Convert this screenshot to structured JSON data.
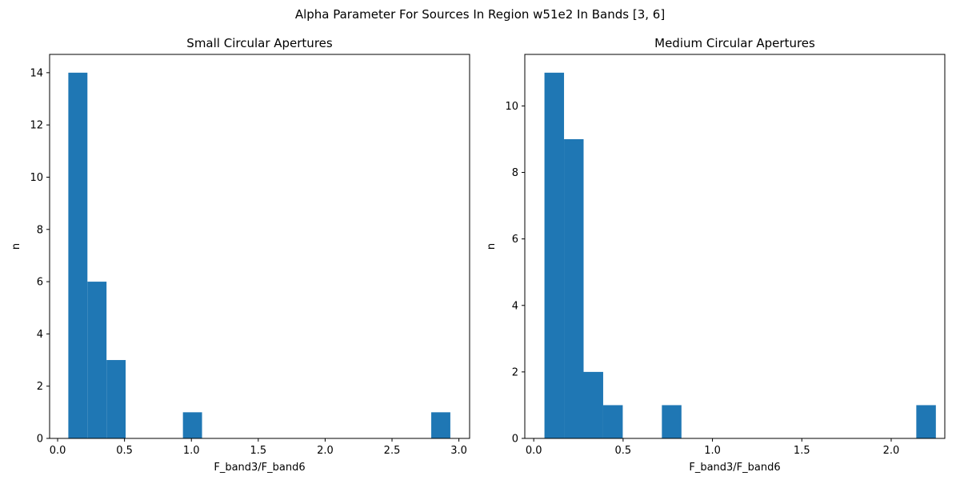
{
  "suptitle": "Alpha Parameter For Sources In Region w51e2 In Bands [3, 6]",
  "chart_data": [
    {
      "type": "bar",
      "title": "Small Circular Apertures",
      "xlabel": "F_band3/F_band6",
      "ylabel": "n",
      "xlim": [
        -0.06,
        3.08
      ],
      "ylim": [
        0,
        14.7
      ],
      "xticks": [
        0.0,
        0.5,
        1.0,
        1.5,
        2.0,
        2.5,
        3.0
      ],
      "xtick_labels": [
        "0.0",
        "0.5",
        "1.0",
        "1.5",
        "2.0",
        "2.5",
        "3.0"
      ],
      "yticks": [
        0,
        2,
        4,
        6,
        8,
        10,
        12,
        14
      ],
      "ytick_labels": [
        "0",
        "2",
        "4",
        "6",
        "8",
        "10",
        "12",
        "14"
      ],
      "bin_start": 0.08,
      "bin_width": 0.1428,
      "counts": [
        14,
        6,
        3,
        0,
        0,
        0,
        1,
        0,
        0,
        0,
        0,
        0,
        0,
        0,
        0,
        0,
        0,
        0,
        0,
        1
      ],
      "color": "#1f77b4"
    },
    {
      "type": "bar",
      "title": "Medium Circular Apertures",
      "xlabel": "F_band3/F_band6",
      "ylabel": "n",
      "xlim": [
        -0.05,
        2.3
      ],
      "ylim": [
        0,
        11.55
      ],
      "xticks": [
        0.0,
        0.5,
        1.0,
        1.5,
        2.0
      ],
      "xtick_labels": [
        "0.0",
        "0.5",
        "1.0",
        "1.5",
        "2.0"
      ],
      "yticks": [
        0,
        2,
        4,
        6,
        8,
        10
      ],
      "ytick_labels": [
        "0",
        "2",
        "4",
        "6",
        "8",
        "10"
      ],
      "bin_start": 0.06,
      "bin_width": 0.1095,
      "counts": [
        11,
        9,
        2,
        1,
        0,
        0,
        1,
        0,
        0,
        0,
        0,
        0,
        0,
        0,
        0,
        0,
        0,
        0,
        0,
        1
      ],
      "color": "#1f77b4"
    }
  ]
}
